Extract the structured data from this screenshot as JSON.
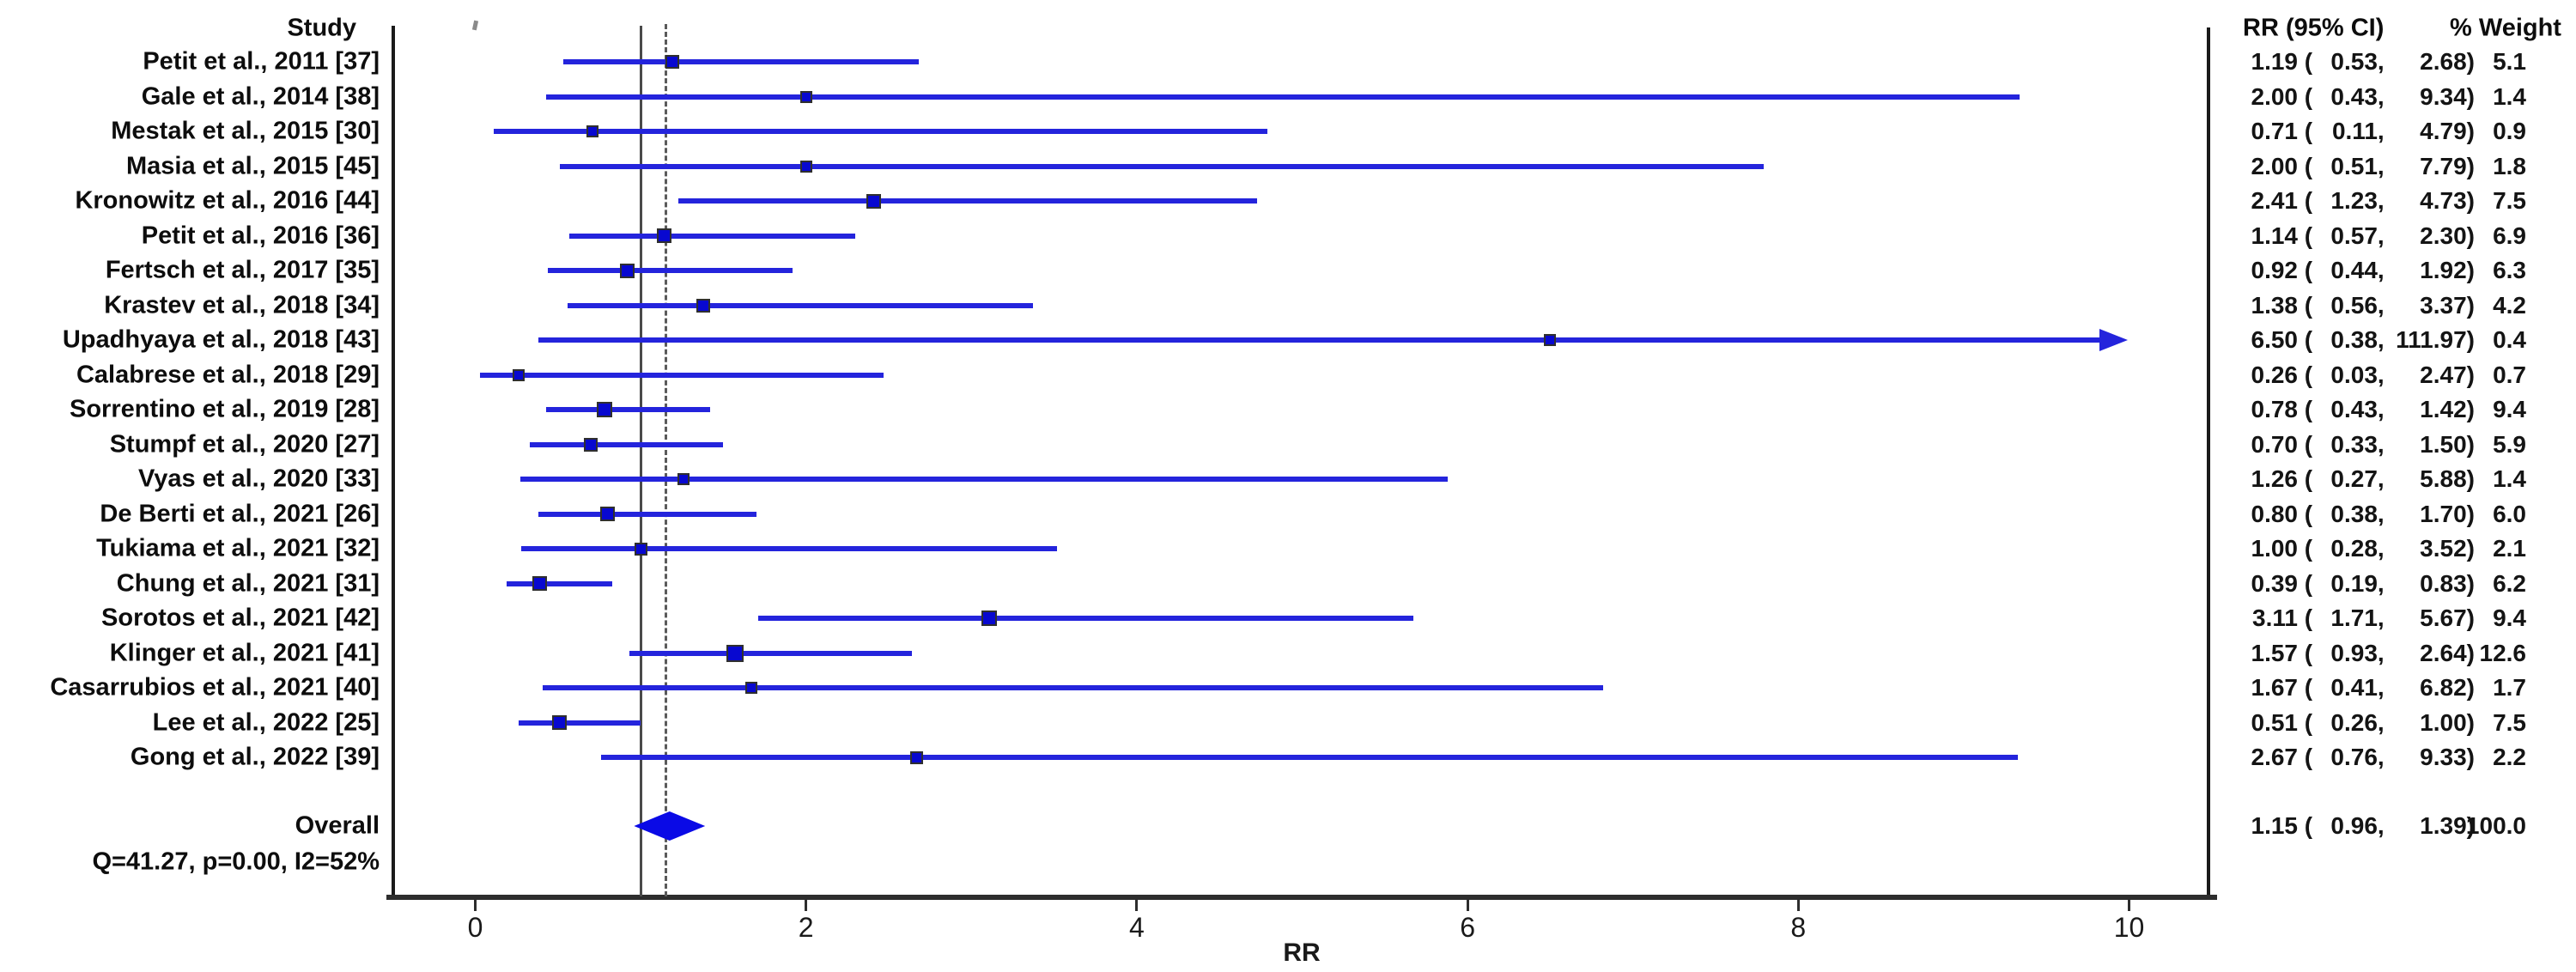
{
  "chart_data": {
    "type": "scatter",
    "subtype": "forest-plot",
    "effect_measure": "RR",
    "columns": {
      "study_header": "Study",
      "rr_header": "RR (95% CI)",
      "weight_header": "% Weight"
    },
    "x_axis": {
      "label": "RR",
      "ticks": [
        0,
        2,
        4,
        6,
        8,
        10
      ],
      "range": [
        0,
        10
      ],
      "grid": false
    },
    "reference_lines": [
      {
        "x": 1.0,
        "style": "solid"
      },
      {
        "x": 1.15,
        "style": "dashed"
      }
    ],
    "studies": [
      {
        "label": "Petit et al., 2011 [37]",
        "rr": 1.19,
        "ci_low": 0.53,
        "ci_high": 2.68,
        "weight": 5.1
      },
      {
        "label": "Gale et al., 2014 [38]",
        "rr": 2.0,
        "ci_low": 0.43,
        "ci_high": 9.34,
        "weight": 1.4
      },
      {
        "label": "Mestak et al., 2015 [30]",
        "rr": 0.71,
        "ci_low": 0.11,
        "ci_high": 4.79,
        "weight": 0.9
      },
      {
        "label": "Masia et al., 2015 [45]",
        "rr": 2.0,
        "ci_low": 0.51,
        "ci_high": 7.79,
        "weight": 1.8
      },
      {
        "label": "Kronowitz et al., 2016 [44]",
        "rr": 2.41,
        "ci_low": 1.23,
        "ci_high": 4.73,
        "weight": 7.5
      },
      {
        "label": "Petit et al., 2016 [36]",
        "rr": 1.14,
        "ci_low": 0.57,
        "ci_high": 2.3,
        "weight": 6.9
      },
      {
        "label": "Fertsch et al., 2017 [35]",
        "rr": 0.92,
        "ci_low": 0.44,
        "ci_high": 1.92,
        "weight": 6.3
      },
      {
        "label": "Krastev et al., 2018 [34]",
        "rr": 1.38,
        "ci_low": 0.56,
        "ci_high": 3.37,
        "weight": 4.2
      },
      {
        "label": "Upadhyaya et al., 2018 [43]",
        "rr": 6.5,
        "ci_low": 0.38,
        "ci_high": 111.97,
        "weight": 0.4
      },
      {
        "label": "Calabrese et al., 2018 [29]",
        "rr": 0.26,
        "ci_low": 0.03,
        "ci_high": 2.47,
        "weight": 0.7
      },
      {
        "label": "Sorrentino et al., 2019 [28]",
        "rr": 0.78,
        "ci_low": 0.43,
        "ci_high": 1.42,
        "weight": 9.4
      },
      {
        "label": "Stumpf et al., 2020 [27]",
        "rr": 0.7,
        "ci_low": 0.33,
        "ci_high": 1.5,
        "weight": 5.9
      },
      {
        "label": "Vyas et al., 2020 [33]",
        "rr": 1.26,
        "ci_low": 0.27,
        "ci_high": 5.88,
        "weight": 1.4
      },
      {
        "label": "De Berti et al., 2021 [26]",
        "rr": 0.8,
        "ci_low": 0.38,
        "ci_high": 1.7,
        "weight": 6.0
      },
      {
        "label": "Tukiama et al., 2021 [32]",
        "rr": 1.0,
        "ci_low": 0.28,
        "ci_high": 3.52,
        "weight": 2.1
      },
      {
        "label": "Chung et al., 2021 [31]",
        "rr": 0.39,
        "ci_low": 0.19,
        "ci_high": 0.83,
        "weight": 6.2
      },
      {
        "label": "Sorotos et al., 2021 [42]",
        "rr": 3.11,
        "ci_low": 1.71,
        "ci_high": 5.67,
        "weight": 9.4
      },
      {
        "label": "Klinger et al., 2021 [41]",
        "rr": 1.57,
        "ci_low": 0.93,
        "ci_high": 2.64,
        "weight": 12.6
      },
      {
        "label": "Casarrubios et al., 2021 [40]",
        "rr": 1.67,
        "ci_low": 0.41,
        "ci_high": 6.82,
        "weight": 1.7
      },
      {
        "label": "Lee et al., 2022 [25]",
        "rr": 0.51,
        "ci_low": 0.26,
        "ci_high": 1.0,
        "weight": 7.5
      },
      {
        "label": "Gong et al., 2022 [39]",
        "rr": 2.67,
        "ci_low": 0.76,
        "ci_high": 9.33,
        "weight": 2.2
      }
    ],
    "overall": {
      "label": "Overall",
      "heterogeneity": "Q=41.27, p=0.00, I2=52%",
      "rr": 1.15,
      "ci_low": 0.96,
      "ci_high": 1.39,
      "weight": 100.0
    },
    "colors": {
      "ci_line": "#2424DC",
      "marker_fill": "#0808D0",
      "marker_border": "#2f2f2f",
      "diamond": "#0a0ae6",
      "frame": "#1a1a1a",
      "axis": "#2d2d2d",
      "ref_solid": "#4a4a4a",
      "ref_dashed": "#5a5a5a",
      "text": "#0d0d0d"
    }
  }
}
